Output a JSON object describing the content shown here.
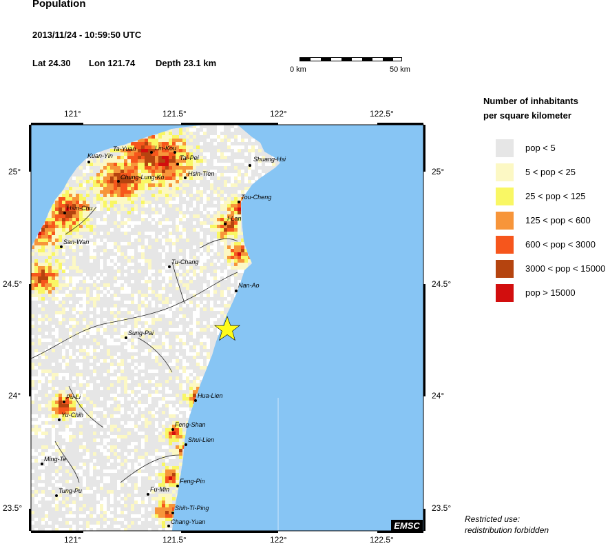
{
  "header": {
    "title": "Population",
    "datetime": "2013/11/24 - 10:59:50 UTC",
    "lat": "Lat 24.30",
    "lon": "Lon 121.74",
    "depth": "Depth  23.1 km"
  },
  "scale_bar": {
    "left_label": "0 km",
    "right_label": "50 km"
  },
  "axes": {
    "lon_ticks": [
      "121°",
      "121.5°",
      "122°",
      "122.5°"
    ],
    "lat_ticks": [
      "25°",
      "24.5°",
      "24°",
      "23.5°"
    ]
  },
  "cities": [
    {
      "name": "Ta-Yuan"
    },
    {
      "name": "Lin-Kou"
    },
    {
      "name": "Kuan-Yin"
    },
    {
      "name": "Tai-Pei"
    },
    {
      "name": "Shuang-Hsi"
    },
    {
      "name": "Chung-Lung-Ko"
    },
    {
      "name": "Hsin-Tien"
    },
    {
      "name": "Tou-Cheng"
    },
    {
      "name": "Hsin-Chu"
    },
    {
      "name": "I-Lan"
    },
    {
      "name": "San-Wan"
    },
    {
      "name": "Tu-Chang"
    },
    {
      "name": "Nan-Ao"
    },
    {
      "name": "Sung-Pai"
    },
    {
      "name": "Hua-Lien"
    },
    {
      "name": "Pu-Li"
    },
    {
      "name": "Yu-Chih"
    },
    {
      "name": "Feng-Shan"
    },
    {
      "name": "Shui-Lien"
    },
    {
      "name": "Ming-Te"
    },
    {
      "name": "Feng-Pin"
    },
    {
      "name": "Fu-Min"
    },
    {
      "name": "Tung-Pu"
    },
    {
      "name": "Shih-Ti-Ping"
    },
    {
      "name": "Chang-Yuan"
    }
  ],
  "legend": {
    "title_line1": "Number of inhabitants",
    "title_line2": "per square kilometer",
    "items": [
      {
        "label": "pop < 5",
        "color": "#e6e6e6"
      },
      {
        "label": "5 < pop < 25",
        "color": "#fcf8c4"
      },
      {
        "label": "25 < pop < 125",
        "color": "#f9f764"
      },
      {
        "label": "125 < pop < 600",
        "color": "#f7953a"
      },
      {
        "label": "600 < pop < 3000",
        "color": "#f6561c"
      },
      {
        "label": "3000 < pop < 15000",
        "color": "#b5440f"
      },
      {
        "label": "pop > 15000",
        "color": "#d20e0e"
      }
    ]
  },
  "footer": {
    "restrict_line1": "Restricted use:",
    "restrict_line2": "redistribution forbidden",
    "logo": "EMSC"
  },
  "colors": {
    "sea": "#87c5f4",
    "star": "#fffc1a"
  }
}
